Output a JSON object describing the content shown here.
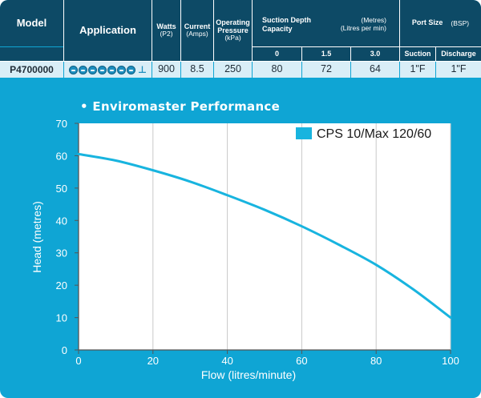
{
  "table": {
    "headers": {
      "model": "Model",
      "application": "Application",
      "watts": "Watts",
      "watts_unit": "(P2)",
      "current": "Current",
      "current_unit": "(Amps)",
      "pressure_l1": "Operating",
      "pressure_l2": "Pressure",
      "pressure_unit": "(kPa)",
      "suction_title_l1": "Suction Depth",
      "suction_title_l2": "Capacity",
      "suction_units_l1": "(Metres)",
      "suction_units_l2": "(Litres per min)",
      "port_title": "Port Size",
      "port_unit": "(BSP)"
    },
    "subheaders": {
      "depth_0": "0",
      "depth_1": "1.5",
      "depth_2": "3.0",
      "suction": "Suction",
      "discharge": "Discharge"
    },
    "row": {
      "model": "P4700000",
      "application_icons": [
        "pool-icon",
        "pool-icon",
        "pool-icon",
        "pool-icon",
        "pool-icon",
        "pool-icon",
        "pool-icon",
        "irrigation-icon"
      ],
      "watts": "900",
      "current": "8.5",
      "pressure": "250",
      "cap_0": "80",
      "cap_1": "72",
      "cap_2": "64",
      "suction": "1\"F",
      "discharge": "1\"F"
    }
  },
  "chart_title": "• Enviromaster Performance",
  "colors": {
    "background": "#0fa5d4",
    "header": "#0d4a66",
    "row": "#d9eef7",
    "curve": "#18b4df"
  },
  "chart_data": {
    "type": "line",
    "title": "Enviromaster Performance",
    "xlabel": "Flow (litres/minute)",
    "ylabel": "Head (metres)",
    "xlim": [
      0,
      100
    ],
    "ylim": [
      0,
      70
    ],
    "xticks": [
      0,
      20,
      40,
      60,
      80,
      100
    ],
    "yticks": [
      0,
      10,
      20,
      30,
      40,
      50,
      60,
      70
    ],
    "grid": "vertical",
    "legend_position": "top-right",
    "series": [
      {
        "name": "CPS 10/Max 120/60",
        "x": [
          0,
          10,
          20,
          30,
          40,
          50,
          60,
          70,
          80,
          90,
          100
        ],
        "y": [
          60.5,
          58.5,
          55.5,
          52,
          47.8,
          43.3,
          38.2,
          32.5,
          26.3,
          18.7,
          10
        ]
      }
    ]
  }
}
